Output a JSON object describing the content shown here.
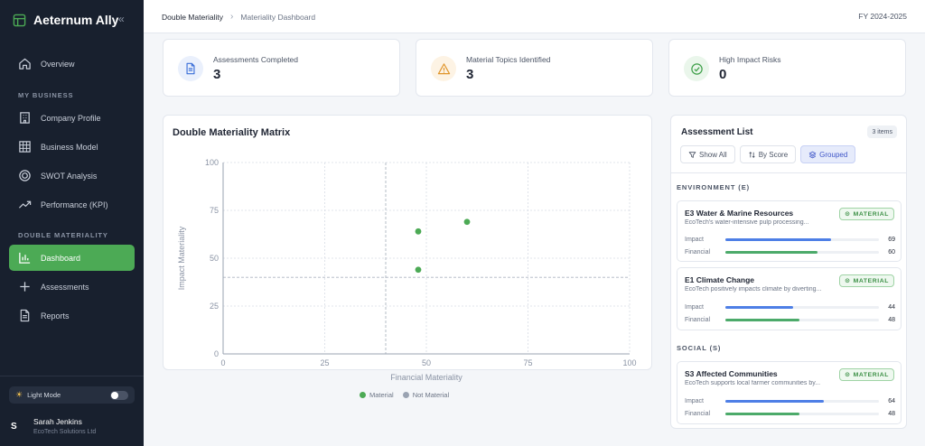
{
  "app": {
    "title": "Aeternum Ally",
    "collapse_glyph": "«"
  },
  "sidebar": {
    "items_top": [
      {
        "label": "Overview",
        "icon": "home-icon"
      }
    ],
    "section_business": "MY BUSINESS",
    "items_business": [
      {
        "label": "Company Profile",
        "icon": "building-icon"
      },
      {
        "label": "Business Model",
        "icon": "grid-icon"
      },
      {
        "label": "SWOT Analysis",
        "icon": "target-icon"
      },
      {
        "label": "Performance (KPI)",
        "icon": "trend-up-icon"
      }
    ],
    "section_materiality": "DOUBLE MATERIALITY",
    "items_materiality": [
      {
        "label": "Dashboard",
        "icon": "bar-chart-icon",
        "active": true
      },
      {
        "label": "Assessments",
        "icon": "plus-icon"
      },
      {
        "label": "Reports",
        "icon": "document-icon"
      }
    ],
    "theme_label": "Light Mode",
    "user": {
      "initial": "S",
      "name": "Sarah Jenkins",
      "company": "EcoTech Solutions Ltd"
    }
  },
  "header": {
    "breadcrumb": [
      "Double Materiality",
      "Materiality Dashboard"
    ],
    "fiscal_year": "FY 2024-2025"
  },
  "stats": [
    {
      "label": "Assessments Completed",
      "value": "3",
      "icon": "document-icon",
      "color": "#3b6fd8",
      "bg": "#eaf0fc"
    },
    {
      "label": "Material Topics Identified",
      "value": "3",
      "icon": "warning-icon",
      "color": "#e0952b",
      "bg": "#fdf3e4"
    },
    {
      "label": "High Impact Risks",
      "value": "0",
      "icon": "check-circle-icon",
      "color": "#3fa04a",
      "bg": "#eaf6eb"
    }
  ],
  "matrix": {
    "title": "Double Materiality Matrix",
    "legend": [
      {
        "label": "Material",
        "color": "#4caa55"
      },
      {
        "label": "Not Material",
        "color": "#9aa3b2"
      }
    ]
  },
  "chart_data": {
    "type": "scatter",
    "title": "Double Materiality Matrix",
    "xlabel": "Financial Materiality",
    "ylabel": "Impact Materiality",
    "xlim": [
      0,
      100
    ],
    "ylim": [
      0,
      100
    ],
    "x_ticks": [
      0,
      25,
      50,
      75,
      100
    ],
    "y_ticks": [
      0,
      25,
      50,
      75,
      100
    ],
    "threshold": {
      "x": 40,
      "y": 40
    },
    "grid": true,
    "legend_position": "bottom",
    "series": [
      {
        "name": "Material",
        "color": "#4caa55",
        "points": [
          [
            60,
            69
          ],
          [
            48,
            64
          ],
          [
            48,
            44
          ]
        ]
      },
      {
        "name": "Not Material",
        "color": "#9aa3b2",
        "points": []
      }
    ]
  },
  "assessments": {
    "title": "Assessment List",
    "count_label": "3 items",
    "filters": [
      {
        "label": "Show All",
        "icon": "filter-icon",
        "active": false
      },
      {
        "label": "By Score",
        "icon": "sort-icon",
        "active": false
      },
      {
        "label": "Grouped",
        "icon": "layers-icon",
        "active": true
      }
    ],
    "impact_label": "Impact",
    "financial_label": "Financial",
    "material_label": "MATERIAL",
    "groups": [
      {
        "label": "ENVIRONMENT (E)",
        "topics": [
          {
            "title": "E3 Water & Marine Resources",
            "desc": "EcoTech's water-intensive pulp processing...",
            "impact": 69,
            "financial": 60
          },
          {
            "title": "E1 Climate Change",
            "desc": "EcoTech positively impacts climate by diverting...",
            "impact": 44,
            "financial": 48
          }
        ]
      },
      {
        "label": "SOCIAL (S)",
        "topics": [
          {
            "title": "S3 Affected Communities",
            "desc": "EcoTech supports local farmer communities by...",
            "impact": 64,
            "financial": 48
          }
        ]
      }
    ]
  }
}
